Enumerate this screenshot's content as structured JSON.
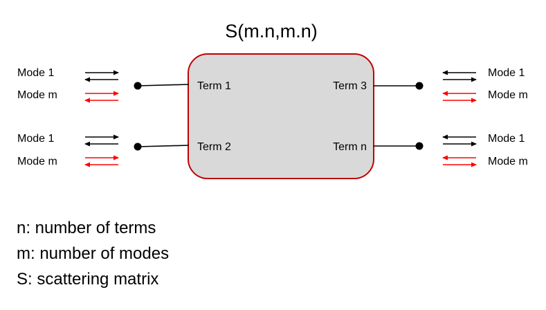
{
  "diagram": {
    "title": "S(m.n,m.n)",
    "terms": {
      "term1": "Term 1",
      "term2": "Term 2",
      "term3": "Term 3",
      "termn": "Term n"
    },
    "modes": {
      "mode1": "Mode 1",
      "modem": "Mode m"
    },
    "legend": {
      "n": "n: number of terms",
      "m": "m: number of modes",
      "s": "S: scattering matrix"
    },
    "colors": {
      "box_fill": "#d9d9d9",
      "box_border": "#c00000",
      "mode_m_arrow": "#ff0000",
      "mode_1_arrow": "#000000"
    }
  }
}
